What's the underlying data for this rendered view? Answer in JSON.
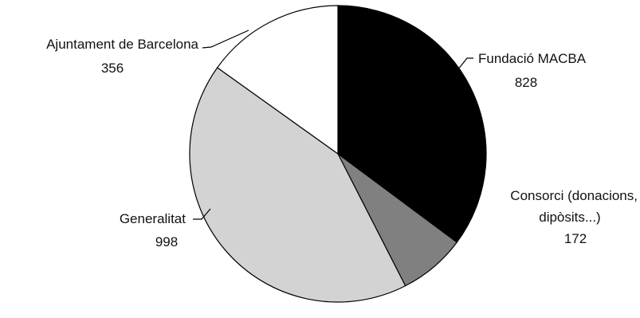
{
  "chart_data": {
    "type": "pie",
    "title": "",
    "slices": [
      {
        "label_lines": [
          "Fundació MACBA"
        ],
        "value": 828,
        "value_label": "828",
        "color": "#000000"
      },
      {
        "label_lines": [
          "Consorci (donacions,",
          "dipòsits...)"
        ],
        "value": 172,
        "value_label": "172",
        "color": "#808080"
      },
      {
        "label_lines": [
          "Generalitat"
        ],
        "value": 998,
        "value_label": "998",
        "color": "#d3d3d3"
      },
      {
        "label_lines": [
          "Ajuntament de Barcelona"
        ],
        "value": 356,
        "value_label": "356",
        "color": "#ffffff"
      }
    ],
    "start_angle_deg": 0,
    "direction": "clockwise",
    "legend": "none",
    "labels": "outside-with-leader-lines"
  }
}
